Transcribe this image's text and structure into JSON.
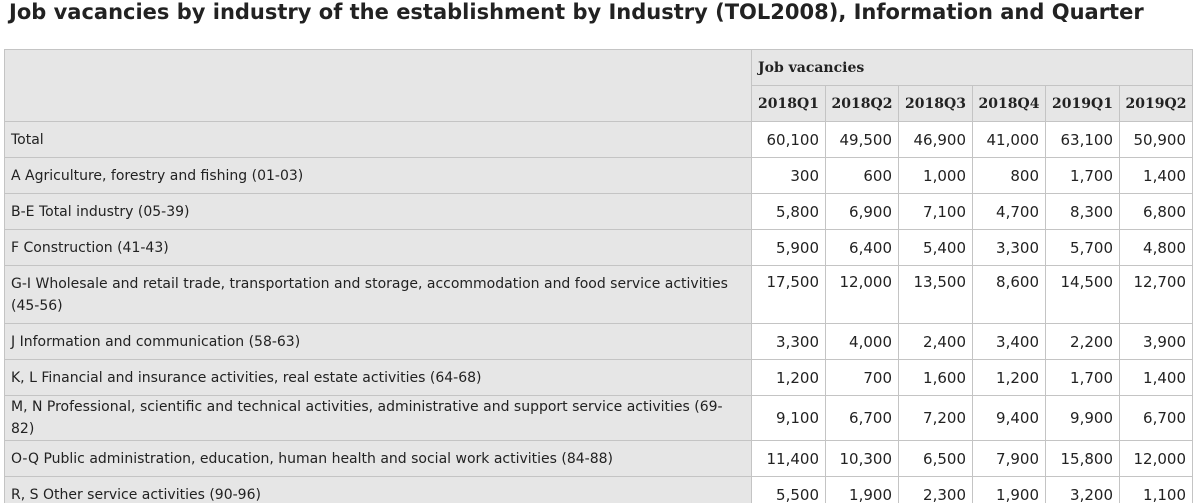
{
  "title": "Job vacancies by industry of the establishment by Industry (TOL2008), Information and Quarter",
  "table": {
    "group_header": "Job vacancies",
    "periods": [
      "2018Q1",
      "2018Q2",
      "2018Q3",
      "2018Q4",
      "2019Q1",
      "2019Q2"
    ],
    "rows": [
      {
        "label": "Total",
        "values": [
          "60,100",
          "49,500",
          "46,900",
          "41,000",
          "63,100",
          "50,900"
        ]
      },
      {
        "label": "A Agriculture, forestry and fishing (01-03)",
        "values": [
          "300",
          "600",
          "1,000",
          "800",
          "1,700",
          "1,400"
        ]
      },
      {
        "label": "B-E Total industry (05-39)",
        "values": [
          "5,800",
          "6,900",
          "7,100",
          "4,700",
          "8,300",
          "6,800"
        ]
      },
      {
        "label": "F Construction (41-43)",
        "values": [
          "5,900",
          "6,400",
          "5,400",
          "3,300",
          "5,700",
          "4,800"
        ]
      },
      {
        "label": "G-I Wholesale and retail trade, transportation and storage, accommodation and food service activities (45-56)",
        "values": [
          "17,500",
          "12,000",
          "13,500",
          "8,600",
          "14,500",
          "12,700"
        ]
      },
      {
        "label": "J Information and communication (58-63)",
        "values": [
          "3,300",
          "4,000",
          "2,400",
          "3,400",
          "2,200",
          "3,900"
        ]
      },
      {
        "label": "K, L Financial and insurance activities, real estate activities (64-68)",
        "values": [
          "1,200",
          "700",
          "1,600",
          "1,200",
          "1,700",
          "1,400"
        ]
      },
      {
        "label": "M, N Professional, scientific and technical activities, administrative and support service activities (69-82)",
        "values": [
          "9,100",
          "6,700",
          "7,200",
          "9,400",
          "9,900",
          "6,700"
        ]
      },
      {
        "label": "O-Q Public administration, education, human health and social work activities (84-88)",
        "values": [
          "11,400",
          "10,300",
          "6,500",
          "7,900",
          "15,800",
          "12,000"
        ]
      },
      {
        "label": "R, S Other service activities (90-96)",
        "values": [
          "5,500",
          "1,900",
          "2,300",
          "1,900",
          "3,200",
          "1,100"
        ]
      }
    ]
  }
}
